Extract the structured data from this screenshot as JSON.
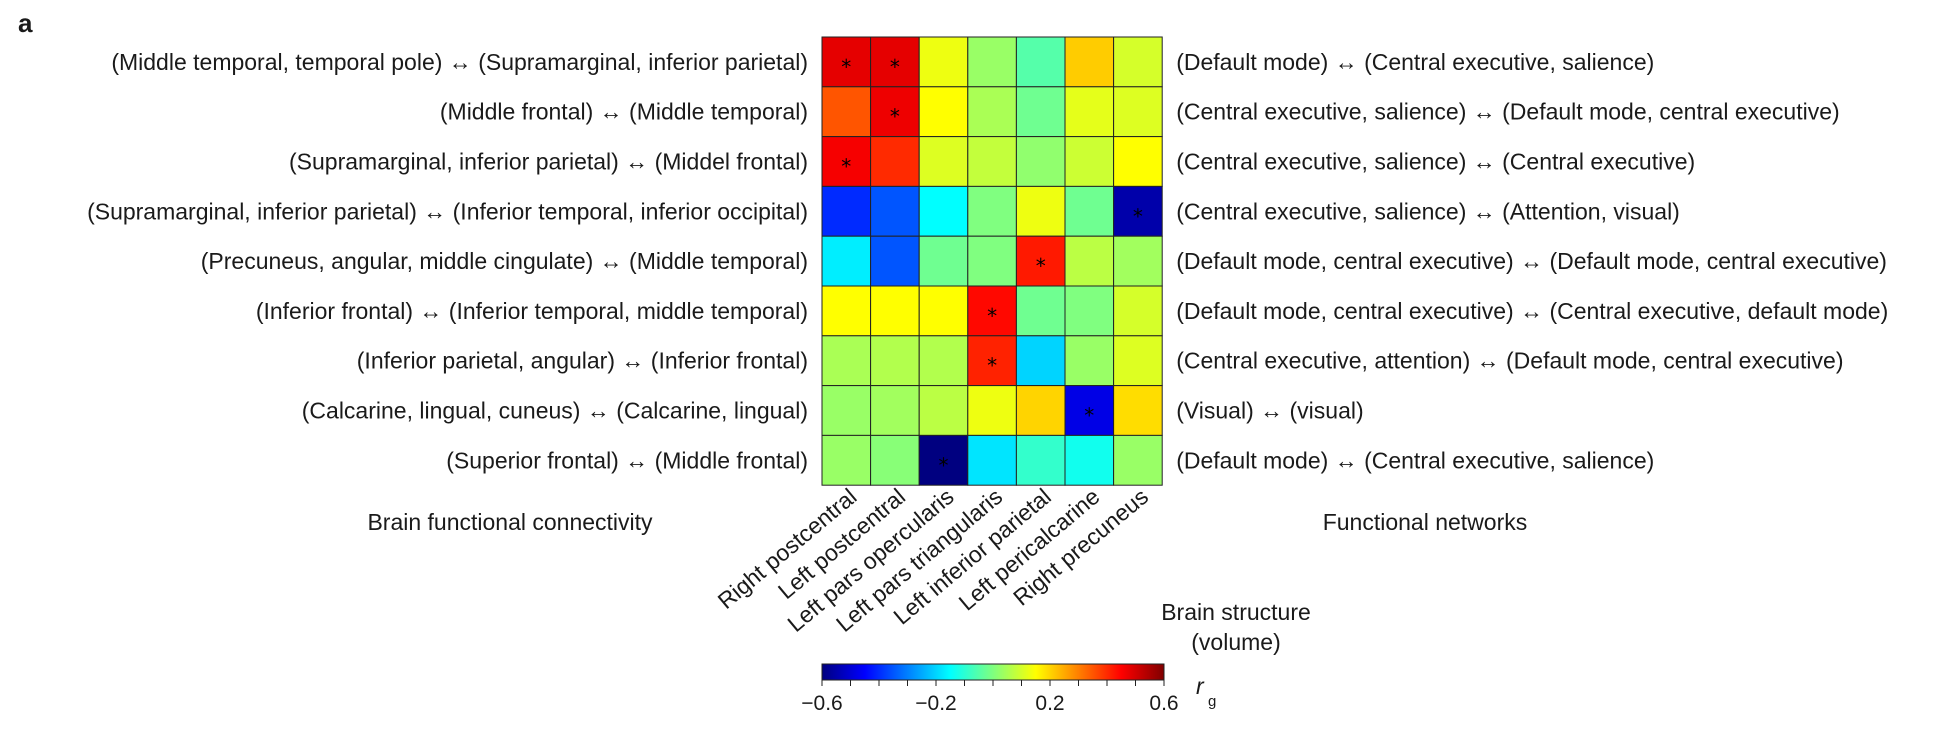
{
  "panel_label": "a",
  "left_title": "Brain functional connectivity",
  "right_title": "Functional networks",
  "colorbar": {
    "title_line1": "Brain structure",
    "title_line2": "(volume)",
    "symbol": "r",
    "symbol_sub": "g",
    "ticks": [
      "−0.6",
      "−0.2",
      "0.2",
      "0.6"
    ],
    "tick_values": [
      -0.6,
      -0.2,
      0.2,
      0.6
    ],
    "range": [
      -0.6,
      0.6
    ],
    "colormap": "jet"
  },
  "chart_data": {
    "type": "heatmap",
    "rows": [
      "(Middle temporal, temporal pole) ↔ (Supramarginal, inferior parietal)",
      "(Middle frontal) ↔ (Middle temporal)",
      "(Supramarginal, inferior parietal) ↔ (Middel frontal)",
      "(Supramarginal, inferior parietal) ↔ (Inferior temporal, inferior occipital)",
      "(Precuneus, angular, middle cingulate) ↔ (Middle temporal)",
      "(Inferior frontal) ↔ (Inferior temporal, middle temporal)",
      "(Inferior parietal, angular) ↔ (Inferior frontal)",
      "(Calcarine, lingual, cuneus) ↔ (Calcarine, lingual)",
      "(Superior frontal) ↔ (Middle frontal)"
    ],
    "networks": [
      "(Default mode) ↔ (Central executive, salience)",
      "(Central executive, salience) ↔ (Default mode, central executive)",
      "(Central executive, salience) ↔ (Central executive)",
      "(Central executive, salience) ↔ (Attention, visual)",
      "(Default mode, central executive) ↔ (Default mode, central executive)",
      "(Default mode, central executive) ↔ (Central executive, default mode)",
      "(Central executive, attention) ↔ (Default mode, central executive)",
      "(Visual) ↔ (visual)",
      "(Default mode) ↔ (Central executive, salience)"
    ],
    "columns": [
      "Right postcentral",
      "Left postcentral",
      "Left pars opercularis",
      "Left pars triangularis",
      "Left inferior parietal",
      "Left pericalcarine",
      "Right precuneus"
    ],
    "values": [
      [
        0.48,
        0.48,
        0.13,
        0.03,
        -0.05,
        0.21,
        0.1
      ],
      [
        0.35,
        0.47,
        0.15,
        0.05,
        -0.02,
        0.12,
        0.11
      ],
      [
        0.46,
        0.4,
        0.11,
        0.08,
        0.02,
        0.09,
        0.15
      ],
      [
        -0.4,
        -0.35,
        -0.15,
        0.0,
        0.13,
        -0.02,
        -0.55
      ],
      [
        -0.17,
        -0.35,
        -0.02,
        0.0,
        0.42,
        0.07,
        0.04
      ],
      [
        0.15,
        0.15,
        0.15,
        0.44,
        -0.02,
        0.0,
        0.1
      ],
      [
        0.05,
        0.06,
        0.06,
        0.41,
        -0.2,
        0.03,
        0.11
      ],
      [
        0.03,
        0.04,
        0.07,
        0.13,
        0.2,
        -0.48,
        0.19
      ],
      [
        0.03,
        0.01,
        -0.62,
        -0.18,
        -0.09,
        -0.13,
        0.03
      ]
    ],
    "significant": [
      [
        0,
        0
      ],
      [
        0,
        1
      ],
      [
        1,
        1
      ],
      [
        2,
        0
      ],
      [
        3,
        6
      ],
      [
        4,
        4
      ],
      [
        5,
        3
      ],
      [
        6,
        3
      ],
      [
        7,
        5
      ],
      [
        8,
        2
      ]
    ],
    "marker": "*"
  }
}
